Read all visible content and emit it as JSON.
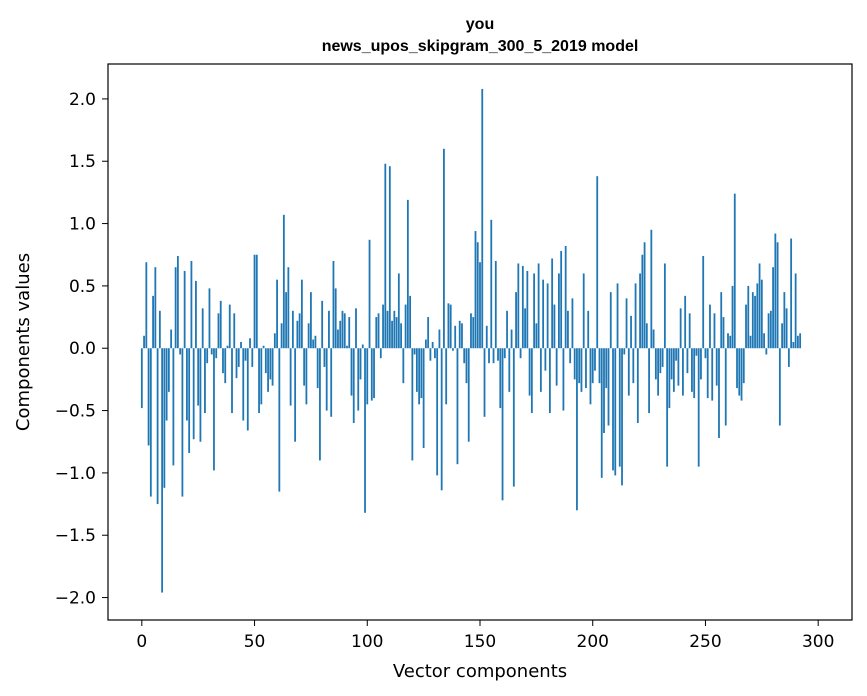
{
  "chart_data": {
    "type": "bar",
    "title": "you",
    "subtitle": "news_upos_skipgram_300_5_2019 model",
    "xlabel": "Vector components",
    "ylabel": "Components values",
    "xlim": [
      -15,
      315
    ],
    "ylim": [
      -2.18,
      2.28
    ],
    "xticks": [
      0,
      50,
      100,
      150,
      200,
      250,
      300
    ],
    "xtick_labels": [
      "0",
      "50",
      "100",
      "150",
      "200",
      "250",
      "300"
    ],
    "yticks": [
      -2.0,
      -1.5,
      -1.0,
      -0.5,
      0.0,
      0.5,
      1.0,
      1.5,
      2.0
    ],
    "ytick_labels": [
      "−2.0",
      "−1.5",
      "−1.0",
      "−0.5",
      "0.0",
      "0.5",
      "1.0",
      "1.5",
      "2.0"
    ],
    "grid": false,
    "bar_color": "#1f77b4",
    "series": [
      {
        "values": [
          -0.48,
          0.1,
          0.69,
          -0.78,
          -1.19,
          0.42,
          0.65,
          -1.25,
          0.3,
          -1.96,
          -1.12,
          -0.58,
          -0.35,
          0.15,
          -0.94,
          0.65,
          0.74,
          -0.05,
          -1.19,
          0.62,
          -0.58,
          -0.84,
          0.7,
          -0.73,
          0.54,
          -0.46,
          -0.75,
          0.32,
          -0.52,
          -0.12,
          0.48,
          -0.05,
          -0.98,
          -0.08,
          0.28,
          0.38,
          -0.2,
          -0.28,
          0.02,
          0.35,
          -0.52,
          0.28,
          -0.24,
          -0.15,
          0.05,
          -0.58,
          -0.1,
          -0.66,
          0.08,
          -0.15,
          0.75,
          0.75,
          -0.52,
          -0.45,
          0.02,
          -0.2,
          -0.35,
          -0.25,
          -0.3,
          0.12,
          0.55,
          -1.15,
          0.2,
          1.07,
          0.45,
          0.65,
          -0.46,
          0.3,
          -0.75,
          0.22,
          0.28,
          0.55,
          -0.3,
          -0.45,
          0.2,
          0.45,
          0.07,
          0.1,
          -0.32,
          -0.9,
          0.38,
          -0.15,
          -0.5,
          0.3,
          -0.55,
          0.7,
          0.48,
          0.15,
          0.22,
          0.3,
          0.28,
          0.02,
          0.25,
          -0.38,
          -0.6,
          0.32,
          -0.5,
          -0.25,
          0.03,
          -1.32,
          -0.45,
          0.87,
          -0.42,
          -0.4,
          0.25,
          0.28,
          -0.08,
          0.35,
          1.48,
          0.3,
          1.46,
          0.22,
          0.3,
          0.25,
          0.6,
          0.2,
          -0.28,
          0.35,
          1.19,
          0.42,
          -0.9,
          -0.05,
          -0.35,
          -0.45,
          -0.4,
          -0.8,
          0.07,
          0.25,
          -0.1,
          0.05,
          -0.08,
          -1.02,
          0.15,
          -1.14,
          1.6,
          -0.45,
          0.36,
          0.35,
          -0.02,
          0.18,
          -0.93,
          0.22,
          0.2,
          -0.12,
          -0.28,
          -0.75,
          0.28,
          0.25,
          0.94,
          0.85,
          0.69,
          2.08,
          -0.55,
          0.18,
          -0.12,
          1.03,
          -0.12,
          0.7,
          -0.1,
          -0.48,
          -1.22,
          -0.08,
          0.3,
          -0.35,
          0.15,
          -1.11,
          0.45,
          0.68,
          -0.08,
          0.66,
          0.32,
          0.62,
          -0.38,
          -0.52,
          0.6,
          0.2,
          0.68,
          -0.35,
          0.55,
          -0.18,
          0.52,
          -0.52,
          0.72,
          0.35,
          -0.3,
          0.6,
          0.78,
          -0.5,
          0.82,
          0.3,
          -0.12,
          0.4,
          -0.25,
          -1.3,
          -0.28,
          -0.35,
          0.6,
          -0.32,
          0.3,
          -0.45,
          -0.28,
          -0.18,
          1.38,
          -0.28,
          -1.04,
          -0.68,
          -0.32,
          -0.62,
          0.45,
          -0.98,
          -1.02,
          0.52,
          -0.95,
          -1.1,
          -0.05,
          0.4,
          -0.38,
          0.26,
          -0.28,
          0.52,
          -0.6,
          0.6,
          0.75,
          0.85,
          0.2,
          -0.52,
          0.95,
          0.15,
          -0.25,
          -0.38,
          -0.2,
          -0.15,
          0.68,
          -0.95,
          -0.48,
          -0.25,
          -0.35,
          -0.1,
          -0.3,
          0.32,
          -0.38,
          0.42,
          -0.2,
          0.28,
          -0.35,
          -0.4,
          -0.06,
          -0.95,
          -0.25,
          0.74,
          -0.08,
          -0.4,
          0.35,
          -0.42,
          0.28,
          -0.3,
          -0.72,
          0.45,
          0.25,
          -0.62,
          0.12,
          0.1,
          0.5,
          1.24,
          -0.32,
          -0.38,
          -0.42,
          -0.28,
          0.35,
          0.5,
          0.1,
          0.45,
          0.42,
          0.52,
          0.68,
          0.55,
          0.12,
          -0.05,
          0.28,
          0.3,
          0.65,
          0.92,
          0.85,
          -0.62,
          0.2,
          0.45,
          0.32,
          -0.15,
          0.88,
          0.05,
          0.6,
          0.1,
          0.12
        ]
      }
    ]
  }
}
